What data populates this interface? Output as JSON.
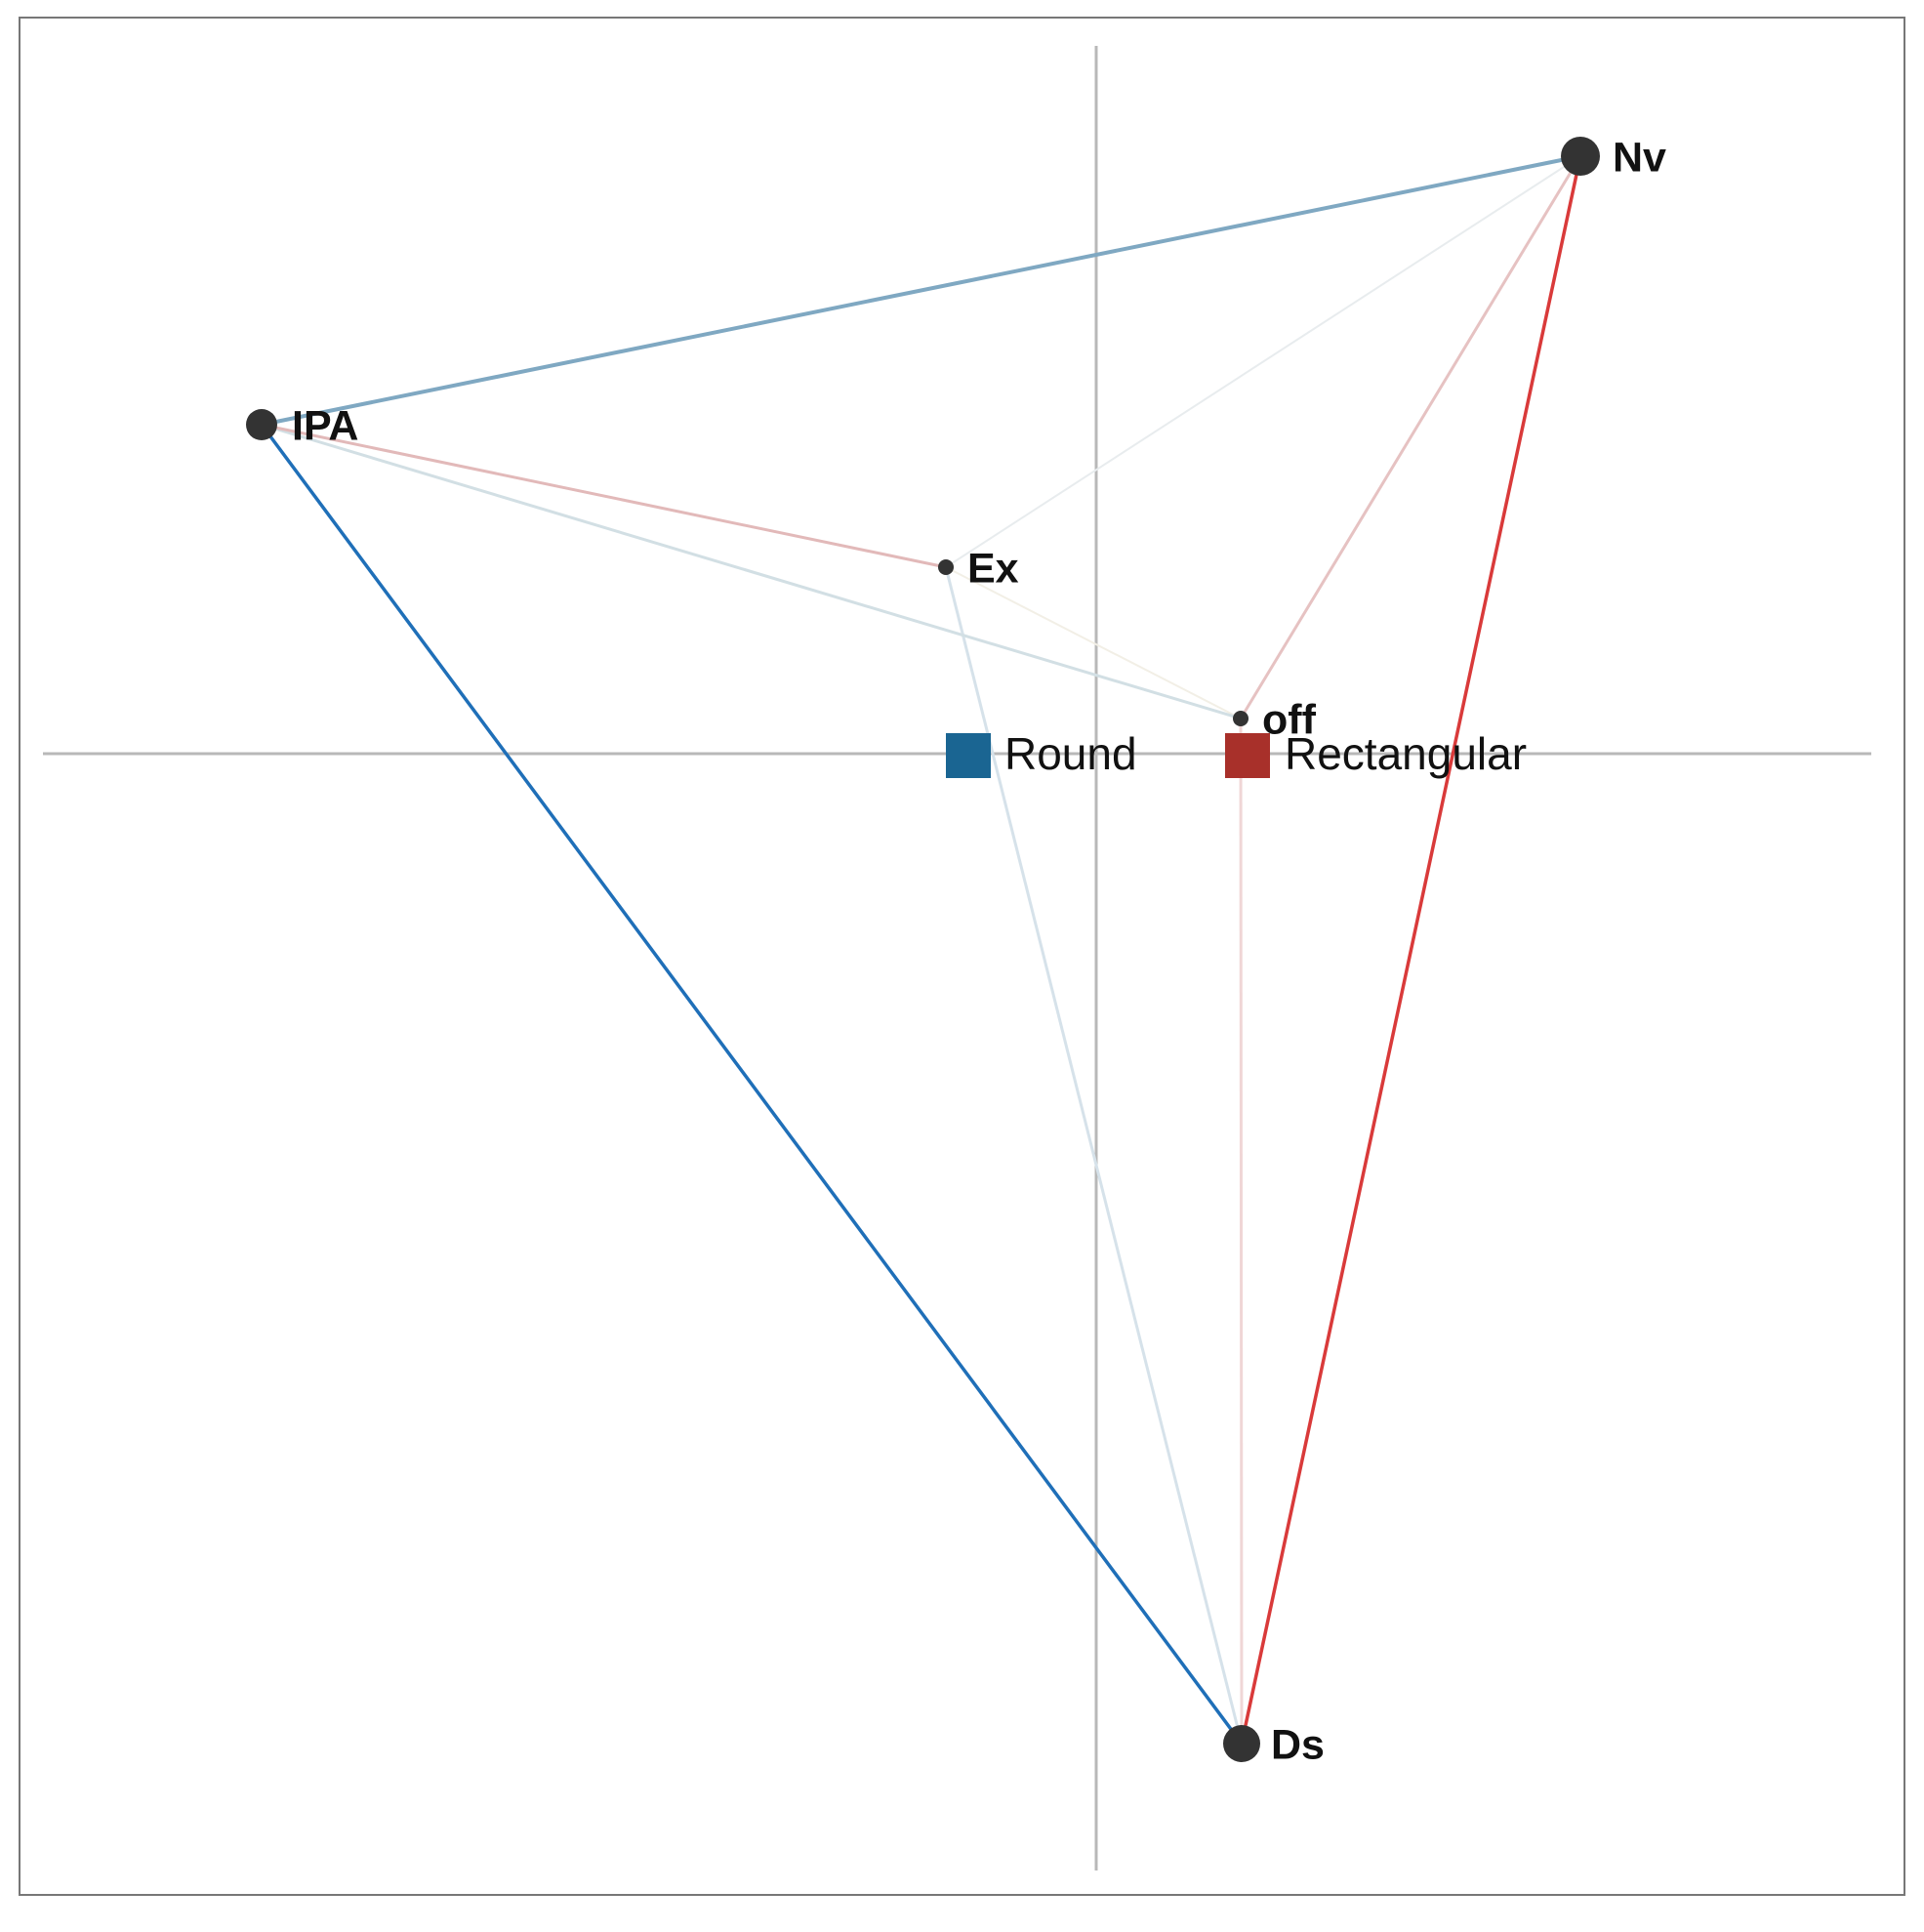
{
  "nodes": [
    {
      "label": "Nv"
    },
    {
      "label": "IPA"
    },
    {
      "label": "Ex"
    },
    {
      "label": "off"
    },
    {
      "label": "Ds"
    }
  ],
  "legend": [
    {
      "label": "Round"
    },
    {
      "label": "Rectangular"
    }
  ]
}
